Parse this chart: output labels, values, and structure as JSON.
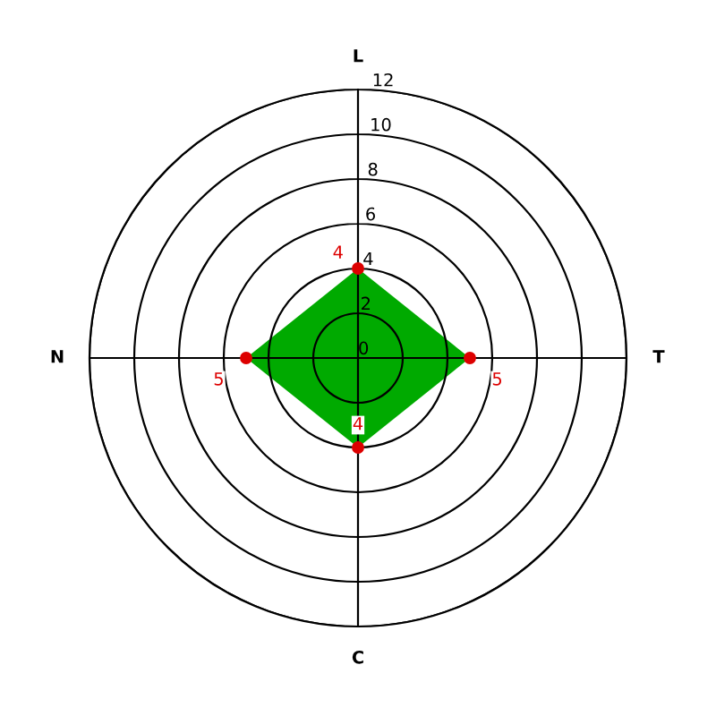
{
  "chart_data": {
    "type": "radar",
    "categories": [
      "L",
      "T",
      "C",
      "N"
    ],
    "series": [
      {
        "color": "#00aa00",
        "values": [
          4,
          5,
          4,
          5
        ]
      }
    ],
    "ylim": [
      0,
      12
    ],
    "yticks": [
      0,
      2,
      4,
      6,
      8,
      10,
      12
    ],
    "grid": true,
    "marker": "circle",
    "data_labels": true
  }
}
